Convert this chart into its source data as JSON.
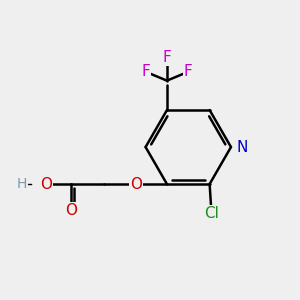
{
  "background_color": "#efefef",
  "atom_colors": {
    "C": "#000000",
    "H": "#7a9aaa",
    "O": "#cc0000",
    "N": "#0000cc",
    "Cl": "#228B22",
    "F": "#cc00cc"
  },
  "bond_color": "#000000",
  "bond_width": 1.8,
  "font_size": 11,
  "figsize": [
    3.0,
    3.0
  ],
  "dpi": 100
}
